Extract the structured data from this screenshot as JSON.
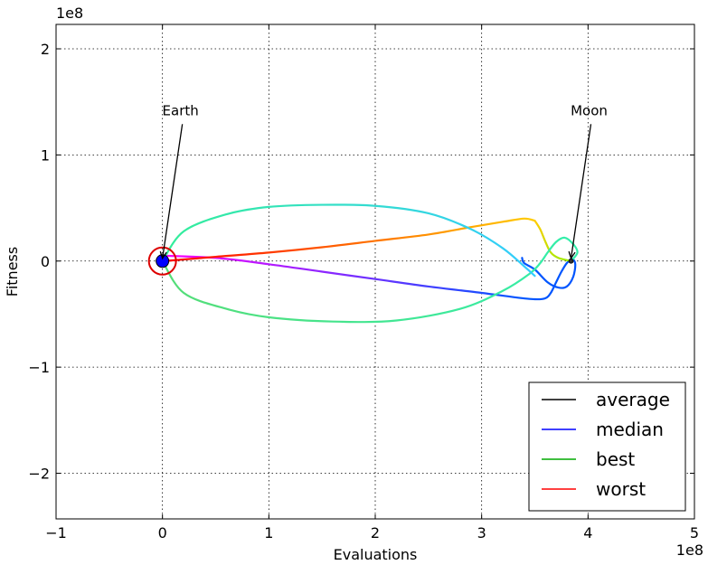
{
  "chart_data": {
    "type": "line",
    "title": "",
    "xlabel": "Evaluations",
    "ylabel": "Fitness",
    "x_offset_label": "1e8",
    "y_offset_label": "1e8",
    "xlim": [
      -1,
      5
    ],
    "ylim": [
      -2.43,
      2.23
    ],
    "xticks": [
      -1,
      0,
      1,
      2,
      3,
      4,
      5
    ],
    "yticks": [
      -2,
      -1,
      0,
      1,
      2
    ],
    "xtick_labels": [
      "−1",
      "0",
      "1",
      "2",
      "3",
      "4",
      "5"
    ],
    "ytick_labels": [
      "−2",
      "−1",
      "0",
      "1",
      "2"
    ],
    "grid": true,
    "legend_position": "bottom-right",
    "legend": [
      {
        "name": "average",
        "color": "#000000"
      },
      {
        "name": "median",
        "color": "#0000ff"
      },
      {
        "name": "best",
        "color": "#00aa00"
      },
      {
        "name": "worst",
        "color": "#ff0000"
      }
    ],
    "annotations": [
      {
        "text": "Earth",
        "x": 0.0,
        "y": 0.0,
        "text_x": 0.0,
        "text_y": 1.35
      },
      {
        "text": "Moon",
        "x": 3.84,
        "y": 0.0,
        "text_x": 3.84,
        "text_y": 1.35
      }
    ],
    "earth": {
      "x": 0.0,
      "y": 0.0,
      "fill": "#0000ff",
      "ring_color": "#dd0000"
    },
    "moon": {
      "x": 3.84,
      "y": 0.0
    },
    "series": [
      {
        "color_start": "#ff00ff",
        "color_end": "#0055ff",
        "points": [
          [
            0.02,
            0.05
          ],
          [
            0.5,
            0.03
          ],
          [
            1.0,
            -0.03
          ],
          [
            1.5,
            -0.1
          ],
          [
            2.0,
            -0.17
          ],
          [
            2.5,
            -0.24
          ],
          [
            3.0,
            -0.3
          ],
          [
            3.3,
            -0.34
          ],
          [
            3.5,
            -0.36
          ],
          [
            3.6,
            -0.35
          ],
          [
            3.65,
            -0.3
          ],
          [
            3.7,
            -0.2
          ],
          [
            3.75,
            -0.1
          ],
          [
            3.8,
            -0.02
          ],
          [
            3.85,
            0.02
          ],
          [
            3.88,
            -0.03
          ],
          [
            3.86,
            -0.15
          ],
          [
            3.8,
            -0.24
          ],
          [
            3.72,
            -0.25
          ],
          [
            3.62,
            -0.2
          ],
          [
            3.5,
            -0.08
          ],
          [
            3.4,
            -0.02
          ],
          [
            3.38,
            0.03
          ]
        ]
      },
      {
        "color_start": "#ff0000",
        "color_end": "#ffcc00",
        "points": [
          [
            0.02,
            0.0
          ],
          [
            0.5,
            0.04
          ],
          [
            1.0,
            0.08
          ],
          [
            1.5,
            0.13
          ],
          [
            2.0,
            0.19
          ],
          [
            2.5,
            0.25
          ],
          [
            2.9,
            0.32
          ],
          [
            3.2,
            0.37
          ],
          [
            3.4,
            0.4
          ],
          [
            3.5,
            0.38
          ]
        ]
      },
      {
        "color_start": "#ffcc00",
        "color_end": "#99ee00",
        "points": [
          [
            3.5,
            0.38
          ],
          [
            3.55,
            0.3
          ],
          [
            3.6,
            0.18
          ],
          [
            3.65,
            0.08
          ],
          [
            3.72,
            0.03
          ],
          [
            3.84,
            0.0
          ]
        ]
      },
      {
        "color_start": "#55dd77",
        "color_end": "#33eeaa",
        "points": [
          [
            0.0,
            0.0
          ],
          [
            0.2,
            -0.3
          ],
          [
            0.6,
            -0.45
          ],
          [
            1.0,
            -0.53
          ],
          [
            1.6,
            -0.57
          ],
          [
            2.2,
            -0.56
          ],
          [
            2.8,
            -0.45
          ],
          [
            3.2,
            -0.28
          ],
          [
            3.45,
            -0.12
          ],
          [
            3.55,
            -0.02
          ],
          [
            3.62,
            0.08
          ],
          [
            3.7,
            0.18
          ],
          [
            3.78,
            0.22
          ],
          [
            3.86,
            0.16
          ],
          [
            3.9,
            0.08
          ],
          [
            3.84,
            0.0
          ]
        ]
      },
      {
        "color_start": "#33ee99",
        "color_end": "#33ccff",
        "points": [
          [
            0.0,
            0.0
          ],
          [
            0.2,
            0.28
          ],
          [
            0.6,
            0.44
          ],
          [
            1.0,
            0.51
          ],
          [
            1.5,
            0.53
          ],
          [
            2.0,
            0.52
          ],
          [
            2.5,
            0.45
          ],
          [
            2.9,
            0.3
          ],
          [
            3.2,
            0.12
          ],
          [
            3.4,
            -0.05
          ],
          [
            3.5,
            -0.14
          ]
        ]
      }
    ]
  }
}
